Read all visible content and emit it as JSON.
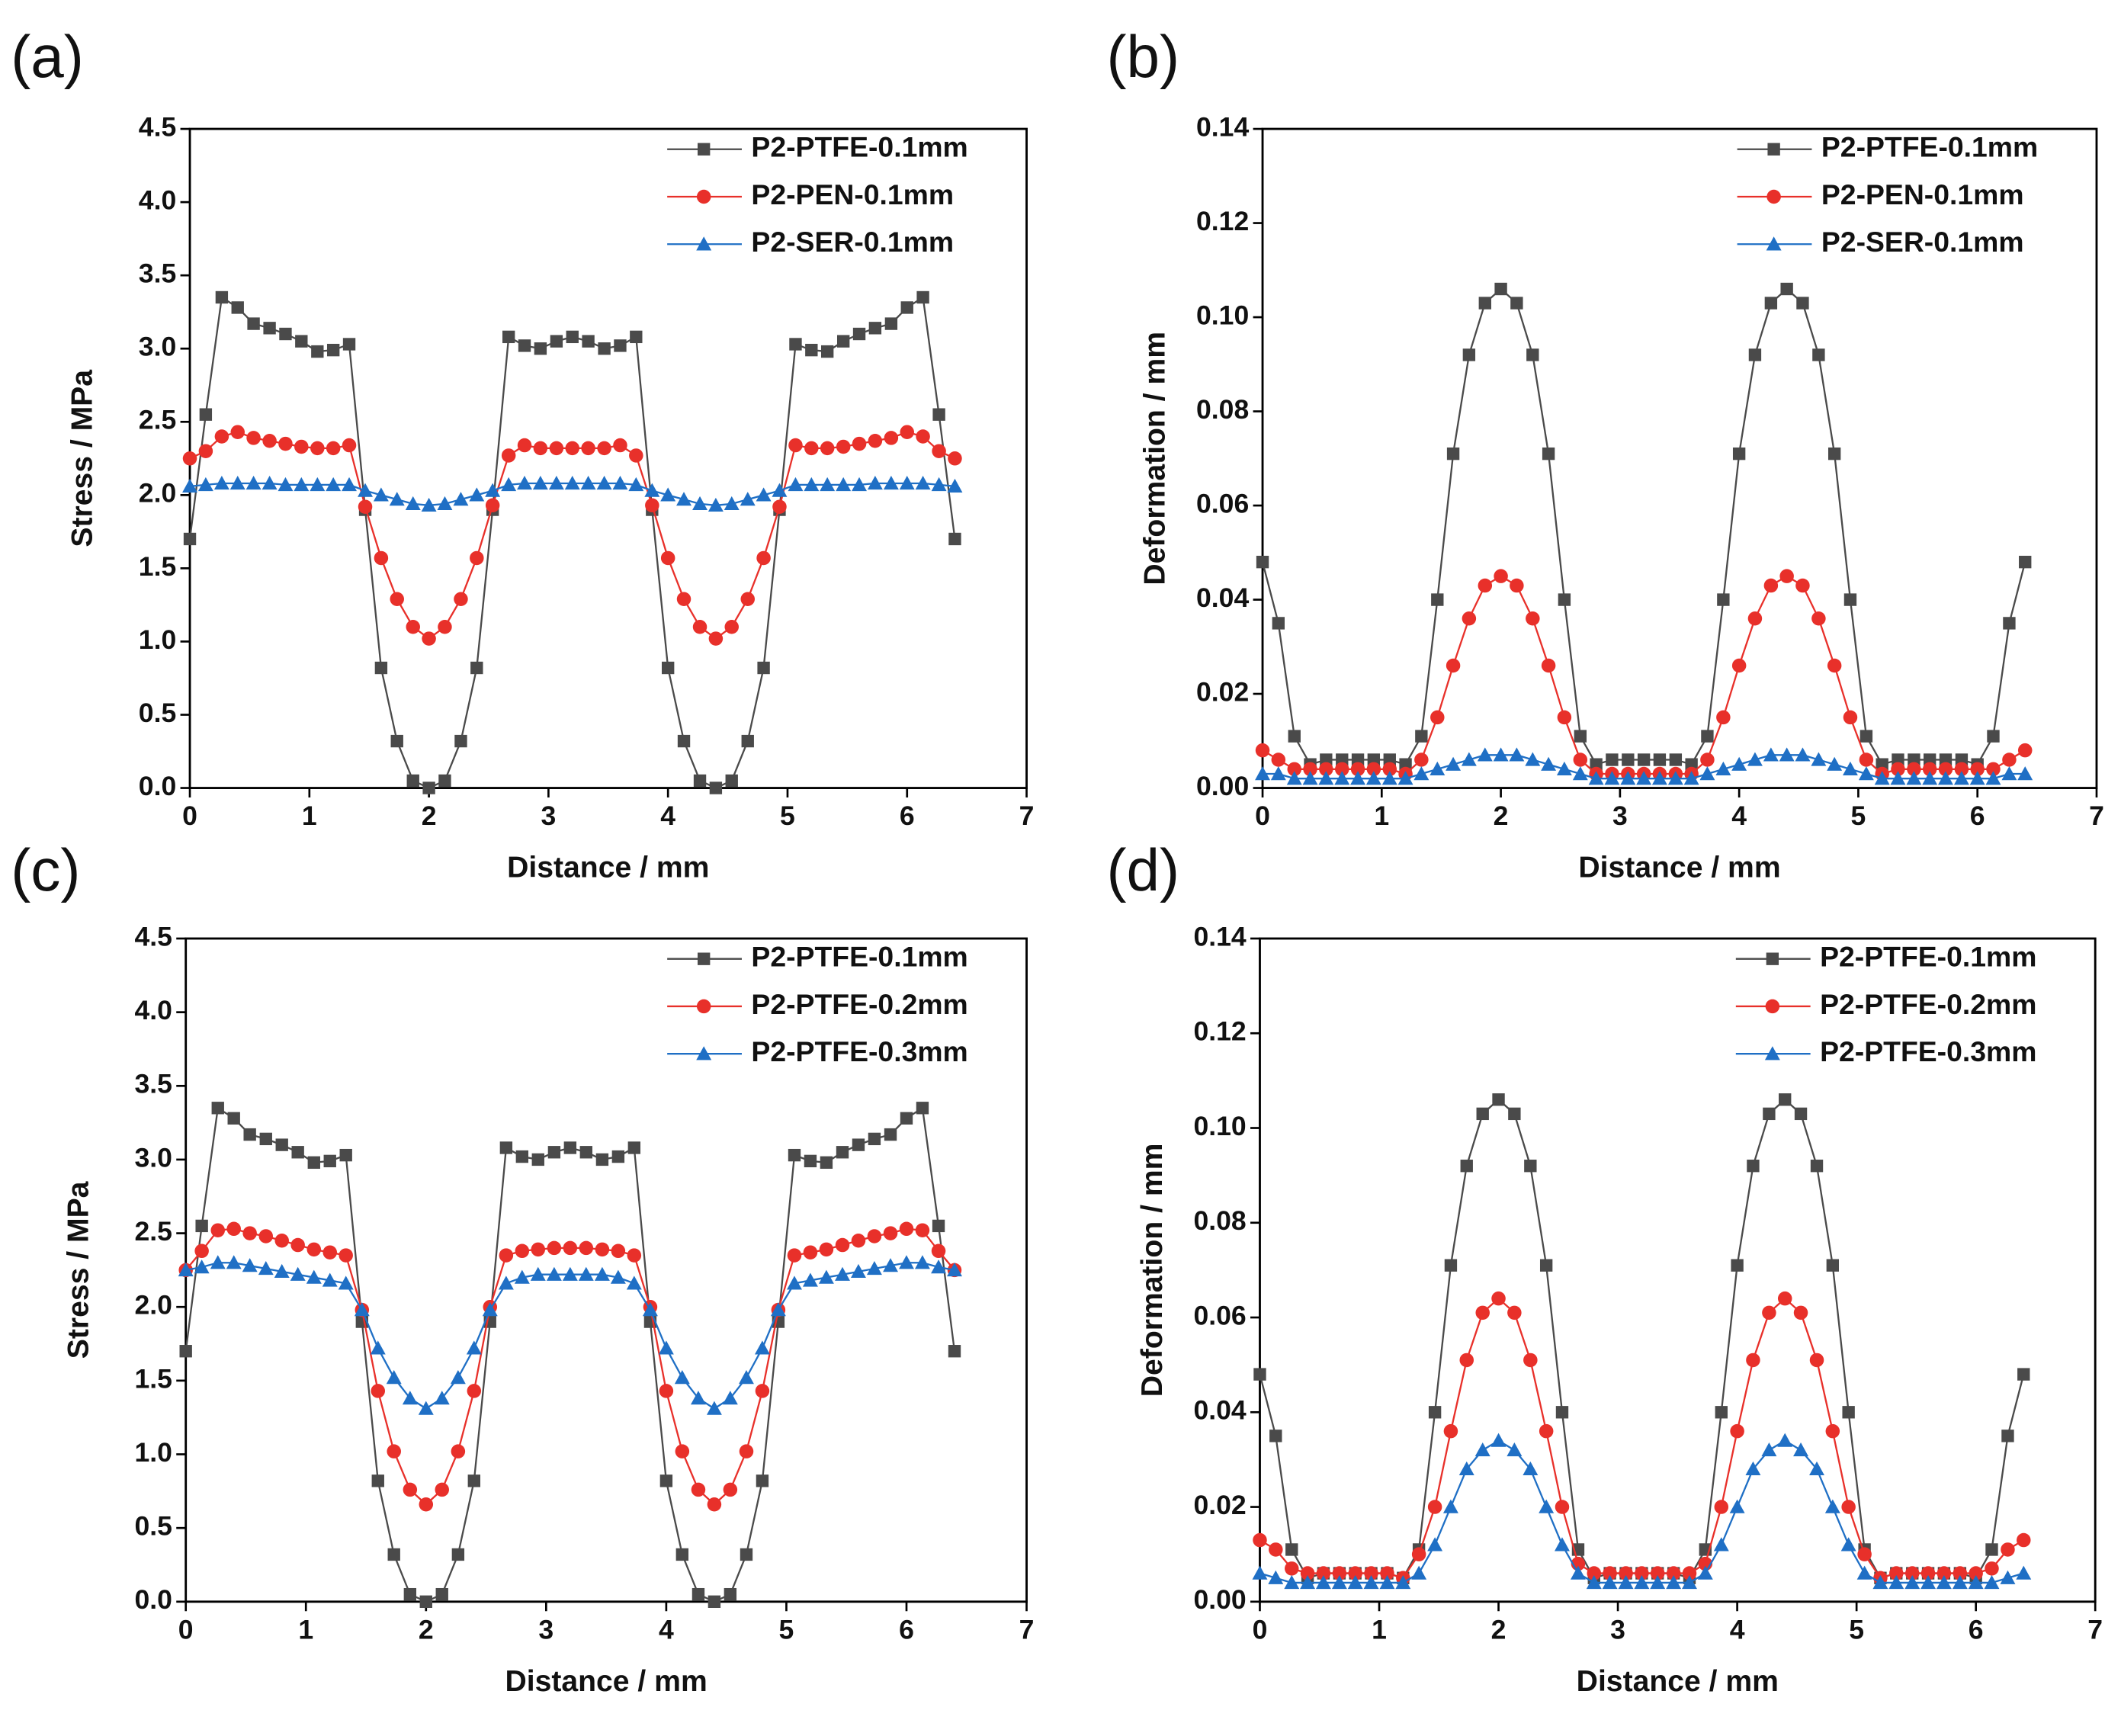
{
  "chart_data": [
    {
      "type": "line",
      "label": "(a)",
      "xlabel": "Distance / mm",
      "ylabel": "Stress / MPa",
      "xlim": [
        0,
        7
      ],
      "xticks": [
        0,
        1,
        2,
        3,
        4,
        5,
        6,
        7
      ],
      "ylim": [
        0,
        4.5
      ],
      "yticks": [
        {
          "value": 0,
          "label": "0.0"
        },
        0.5,
        {
          "value": 1,
          "label": "1.0"
        },
        1.5,
        {
          "value": 2,
          "label": "2.0"
        },
        2.5,
        {
          "value": 3,
          "label": "3.0"
        },
        3.5,
        {
          "value": 4,
          "label": "4.0"
        },
        4.5
      ],
      "legend": "upper right",
      "x": [
        0,
        0.133,
        0.267,
        0.4,
        0.533,
        0.667,
        0.8,
        0.933,
        1.067,
        1.2,
        1.333,
        1.467,
        1.6,
        1.733,
        1.867,
        2,
        2.133,
        2.267,
        2.4,
        2.533,
        2.667,
        2.8,
        2.933,
        3.067,
        3.2,
        3.333,
        3.467,
        3.6,
        3.733,
        3.867,
        4,
        4.133,
        4.267,
        4.4,
        4.533,
        4.667,
        4.8,
        4.933,
        5.067,
        5.2,
        5.333,
        5.467,
        5.6,
        5.733,
        5.867,
        6,
        6.133,
        6.267,
        6.4
      ],
      "series": [
        {
          "name": "P2-PTFE-0.1mm",
          "color": "#4a4a4a",
          "marker": "square",
          "values": [
            1.7,
            2.55,
            3.35,
            3.28,
            3.17,
            3.14,
            3.1,
            3.05,
            2.98,
            2.99,
            3.03,
            1.9,
            0.82,
            0.32,
            0.05,
            0.0,
            0.05,
            0.32,
            0.82,
            1.9,
            3.08,
            3.02,
            3.0,
            3.05,
            3.08,
            3.05,
            3.0,
            3.02,
            3.08,
            1.9,
            0.82,
            0.32,
            0.05,
            0.0,
            0.05,
            0.32,
            0.82,
            1.9,
            3.03,
            2.99,
            2.98,
            3.05,
            3.1,
            3.14,
            3.17,
            3.28,
            3.35,
            2.55,
            1.7
          ]
        },
        {
          "name": "P2-PEN-0.1mm",
          "color": "#e8302a",
          "marker": "circle",
          "values": [
            2.25,
            2.3,
            2.4,
            2.43,
            2.39,
            2.37,
            2.35,
            2.33,
            2.32,
            2.32,
            2.34,
            1.92,
            1.57,
            1.29,
            1.1,
            1.02,
            1.1,
            1.29,
            1.57,
            1.93,
            2.27,
            2.34,
            2.32,
            2.32,
            2.32,
            2.32,
            2.32,
            2.34,
            2.27,
            1.93,
            1.57,
            1.29,
            1.1,
            1.02,
            1.1,
            1.29,
            1.57,
            1.92,
            2.34,
            2.32,
            2.32,
            2.33,
            2.35,
            2.37,
            2.39,
            2.43,
            2.4,
            2.3,
            2.25
          ]
        },
        {
          "name": "P2-SER-0.1mm",
          "color": "#1f6fc5",
          "marker": "triangle",
          "values": [
            2.06,
            2.07,
            2.08,
            2.08,
            2.08,
            2.08,
            2.07,
            2.07,
            2.07,
            2.07,
            2.07,
            2.03,
            2.0,
            1.97,
            1.94,
            1.93,
            1.94,
            1.97,
            2.0,
            2.03,
            2.07,
            2.08,
            2.08,
            2.08,
            2.08,
            2.08,
            2.08,
            2.08,
            2.07,
            2.03,
            2.0,
            1.97,
            1.94,
            1.93,
            1.94,
            1.97,
            2.0,
            2.03,
            2.07,
            2.07,
            2.07,
            2.07,
            2.07,
            2.08,
            2.08,
            2.08,
            2.08,
            2.07,
            2.06
          ]
        }
      ]
    },
    {
      "type": "line",
      "label": "(b)",
      "xlabel": "Distance / mm",
      "ylabel": "Deformation / mm",
      "xlim": [
        0,
        7
      ],
      "xticks": [
        0,
        1,
        2,
        3,
        4,
        5,
        6,
        7
      ],
      "ylim": [
        0,
        0.14
      ],
      "yticks": [
        {
          "value": 0,
          "label": "0.00"
        },
        0.02,
        0.04,
        0.06,
        0.08,
        {
          "value": 0.1,
          "label": "0.10"
        },
        0.12,
        0.14
      ],
      "legend": "upper right",
      "x": [
        0,
        0.133,
        0.267,
        0.4,
        0.533,
        0.667,
        0.8,
        0.933,
        1.067,
        1.2,
        1.333,
        1.467,
        1.6,
        1.733,
        1.867,
        2,
        2.133,
        2.267,
        2.4,
        2.533,
        2.667,
        2.8,
        2.933,
        3.067,
        3.2,
        3.333,
        3.467,
        3.6,
        3.733,
        3.867,
        4,
        4.133,
        4.267,
        4.4,
        4.533,
        4.667,
        4.8,
        4.933,
        5.067,
        5.2,
        5.333,
        5.467,
        5.6,
        5.733,
        5.867,
        6,
        6.133,
        6.267,
        6.4
      ],
      "series": [
        {
          "name": "P2-PTFE-0.1mm",
          "color": "#4a4a4a",
          "marker": "square",
          "values": [
            0.048,
            0.035,
            0.011,
            0.005,
            0.006,
            0.006,
            0.006,
            0.006,
            0.006,
            0.005,
            0.011,
            0.04,
            0.071,
            0.092,
            0.103,
            0.106,
            0.103,
            0.092,
            0.071,
            0.04,
            0.011,
            0.005,
            0.006,
            0.006,
            0.006,
            0.006,
            0.006,
            0.005,
            0.011,
            0.04,
            0.071,
            0.092,
            0.103,
            0.106,
            0.103,
            0.092,
            0.071,
            0.04,
            0.011,
            0.005,
            0.006,
            0.006,
            0.006,
            0.006,
            0.006,
            0.005,
            0.011,
            0.035,
            0.048
          ]
        },
        {
          "name": "P2-PEN-0.1mm",
          "color": "#e8302a",
          "marker": "circle",
          "values": [
            0.008,
            0.006,
            0.004,
            0.004,
            0.004,
            0.004,
            0.004,
            0.004,
            0.004,
            0.003,
            0.006,
            0.015,
            0.026,
            0.036,
            0.043,
            0.045,
            0.043,
            0.036,
            0.026,
            0.015,
            0.006,
            0.003,
            0.003,
            0.003,
            0.003,
            0.003,
            0.003,
            0.003,
            0.006,
            0.015,
            0.026,
            0.036,
            0.043,
            0.045,
            0.043,
            0.036,
            0.026,
            0.015,
            0.006,
            0.003,
            0.004,
            0.004,
            0.004,
            0.004,
            0.004,
            0.004,
            0.004,
            0.006,
            0.008
          ]
        },
        {
          "name": "P2-SER-0.1mm",
          "color": "#1f6fc5",
          "marker": "triangle",
          "values": [
            0.003,
            0.003,
            0.002,
            0.002,
            0.002,
            0.002,
            0.002,
            0.002,
            0.002,
            0.002,
            0.003,
            0.004,
            0.005,
            0.006,
            0.007,
            0.007,
            0.007,
            0.006,
            0.005,
            0.004,
            0.003,
            0.002,
            0.002,
            0.002,
            0.002,
            0.002,
            0.002,
            0.002,
            0.003,
            0.004,
            0.005,
            0.006,
            0.007,
            0.007,
            0.007,
            0.006,
            0.005,
            0.004,
            0.003,
            0.002,
            0.002,
            0.002,
            0.002,
            0.002,
            0.002,
            0.002,
            0.002,
            0.003,
            0.003
          ]
        }
      ]
    },
    {
      "type": "line",
      "label": "(c)",
      "xlabel": "Distance / mm",
      "ylabel": "Stress / MPa",
      "xlim": [
        0,
        7
      ],
      "xticks": [
        0,
        1,
        2,
        3,
        4,
        5,
        6,
        7
      ],
      "ylim": [
        0,
        4.5
      ],
      "yticks": [
        {
          "value": 0,
          "label": "0.0"
        },
        0.5,
        {
          "value": 1,
          "label": "1.0"
        },
        1.5,
        {
          "value": 2,
          "label": "2.0"
        },
        2.5,
        {
          "value": 3,
          "label": "3.0"
        },
        3.5,
        {
          "value": 4,
          "label": "4.0"
        },
        4.5
      ],
      "legend": "upper right",
      "x": [
        0,
        0.133,
        0.267,
        0.4,
        0.533,
        0.667,
        0.8,
        0.933,
        1.067,
        1.2,
        1.333,
        1.467,
        1.6,
        1.733,
        1.867,
        2,
        2.133,
        2.267,
        2.4,
        2.533,
        2.667,
        2.8,
        2.933,
        3.067,
        3.2,
        3.333,
        3.467,
        3.6,
        3.733,
        3.867,
        4,
        4.133,
        4.267,
        4.4,
        4.533,
        4.667,
        4.8,
        4.933,
        5.067,
        5.2,
        5.333,
        5.467,
        5.6,
        5.733,
        5.867,
        6,
        6.133,
        6.267,
        6.4
      ],
      "series": [
        {
          "name": "P2-PTFE-0.1mm",
          "color": "#4a4a4a",
          "marker": "square",
          "values": [
            1.7,
            2.55,
            3.35,
            3.28,
            3.17,
            3.14,
            3.1,
            3.05,
            2.98,
            2.99,
            3.03,
            1.9,
            0.82,
            0.32,
            0.05,
            0.0,
            0.05,
            0.32,
            0.82,
            1.9,
            3.08,
            3.02,
            3.0,
            3.05,
            3.08,
            3.05,
            3.0,
            3.02,
            3.08,
            1.9,
            0.82,
            0.32,
            0.05,
            0.0,
            0.05,
            0.32,
            0.82,
            1.9,
            3.03,
            2.99,
            2.98,
            3.05,
            3.1,
            3.14,
            3.17,
            3.28,
            3.35,
            2.55,
            1.7
          ]
        },
        {
          "name": "P2-PTFE-0.2mm",
          "color": "#e8302a",
          "marker": "circle",
          "values": [
            2.25,
            2.38,
            2.52,
            2.53,
            2.5,
            2.48,
            2.45,
            2.42,
            2.39,
            2.37,
            2.35,
            1.98,
            1.43,
            1.02,
            0.76,
            0.66,
            0.76,
            1.02,
            1.43,
            2.0,
            2.35,
            2.38,
            2.39,
            2.4,
            2.4,
            2.4,
            2.39,
            2.38,
            2.35,
            2.0,
            1.43,
            1.02,
            0.76,
            0.66,
            0.76,
            1.02,
            1.43,
            1.98,
            2.35,
            2.37,
            2.39,
            2.42,
            2.45,
            2.48,
            2.5,
            2.53,
            2.52,
            2.38,
            2.25
          ]
        },
        {
          "name": "P2-PTFE-0.3mm",
          "color": "#1f6fc5",
          "marker": "triangle",
          "values": [
            2.25,
            2.27,
            2.3,
            2.3,
            2.28,
            2.26,
            2.24,
            2.22,
            2.2,
            2.18,
            2.16,
            1.98,
            1.72,
            1.52,
            1.38,
            1.31,
            1.38,
            1.52,
            1.72,
            1.98,
            2.16,
            2.2,
            2.22,
            2.22,
            2.22,
            2.22,
            2.22,
            2.2,
            2.16,
            1.98,
            1.72,
            1.52,
            1.38,
            1.31,
            1.38,
            1.52,
            1.72,
            1.98,
            2.16,
            2.18,
            2.2,
            2.22,
            2.24,
            2.26,
            2.28,
            2.3,
            2.3,
            2.27,
            2.25
          ]
        }
      ]
    },
    {
      "type": "line",
      "label": "(d)",
      "xlabel": "Distance / mm",
      "ylabel": "Deformation / mm",
      "xlim": [
        0,
        7
      ],
      "xticks": [
        0,
        1,
        2,
        3,
        4,
        5,
        6,
        7
      ],
      "ylim": [
        0,
        0.14
      ],
      "yticks": [
        {
          "value": 0,
          "label": "0.00"
        },
        0.02,
        0.04,
        0.06,
        0.08,
        {
          "value": 0.1,
          "label": "0.10"
        },
        0.12,
        0.14
      ],
      "legend": "upper right",
      "x": [
        0,
        0.133,
        0.267,
        0.4,
        0.533,
        0.667,
        0.8,
        0.933,
        1.067,
        1.2,
        1.333,
        1.467,
        1.6,
        1.733,
        1.867,
        2,
        2.133,
        2.267,
        2.4,
        2.533,
        2.667,
        2.8,
        2.933,
        3.067,
        3.2,
        3.333,
        3.467,
        3.6,
        3.733,
        3.867,
        4,
        4.133,
        4.267,
        4.4,
        4.533,
        4.667,
        4.8,
        4.933,
        5.067,
        5.2,
        5.333,
        5.467,
        5.6,
        5.733,
        5.867,
        6,
        6.133,
        6.267,
        6.4
      ],
      "series": [
        {
          "name": "P2-PTFE-0.1mm",
          "color": "#4a4a4a",
          "marker": "square",
          "values": [
            0.048,
            0.035,
            0.011,
            0.005,
            0.006,
            0.006,
            0.006,
            0.006,
            0.006,
            0.005,
            0.011,
            0.04,
            0.071,
            0.092,
            0.103,
            0.106,
            0.103,
            0.092,
            0.071,
            0.04,
            0.011,
            0.005,
            0.006,
            0.006,
            0.006,
            0.006,
            0.006,
            0.005,
            0.011,
            0.04,
            0.071,
            0.092,
            0.103,
            0.106,
            0.103,
            0.092,
            0.071,
            0.04,
            0.011,
            0.005,
            0.006,
            0.006,
            0.006,
            0.006,
            0.006,
            0.005,
            0.011,
            0.035,
            0.048
          ]
        },
        {
          "name": "P2-PTFE-0.2mm",
          "color": "#e8302a",
          "marker": "circle",
          "values": [
            0.013,
            0.011,
            0.007,
            0.006,
            0.006,
            0.006,
            0.006,
            0.006,
            0.006,
            0.005,
            0.01,
            0.02,
            0.036,
            0.051,
            0.061,
            0.064,
            0.061,
            0.051,
            0.036,
            0.02,
            0.008,
            0.006,
            0.006,
            0.006,
            0.006,
            0.006,
            0.006,
            0.006,
            0.008,
            0.02,
            0.036,
            0.051,
            0.061,
            0.064,
            0.061,
            0.051,
            0.036,
            0.02,
            0.01,
            0.005,
            0.006,
            0.006,
            0.006,
            0.006,
            0.006,
            0.006,
            0.007,
            0.011,
            0.013
          ]
        },
        {
          "name": "P2-PTFE-0.3mm",
          "color": "#1f6fc5",
          "marker": "triangle",
          "values": [
            0.006,
            0.005,
            0.004,
            0.004,
            0.004,
            0.004,
            0.004,
            0.004,
            0.004,
            0.004,
            0.006,
            0.012,
            0.02,
            0.028,
            0.032,
            0.034,
            0.032,
            0.028,
            0.02,
            0.012,
            0.006,
            0.004,
            0.004,
            0.004,
            0.004,
            0.004,
            0.004,
            0.004,
            0.006,
            0.012,
            0.02,
            0.028,
            0.032,
            0.034,
            0.032,
            0.028,
            0.02,
            0.012,
            0.006,
            0.004,
            0.004,
            0.004,
            0.004,
            0.004,
            0.004,
            0.004,
            0.004,
            0.005,
            0.006
          ]
        }
      ]
    }
  ]
}
